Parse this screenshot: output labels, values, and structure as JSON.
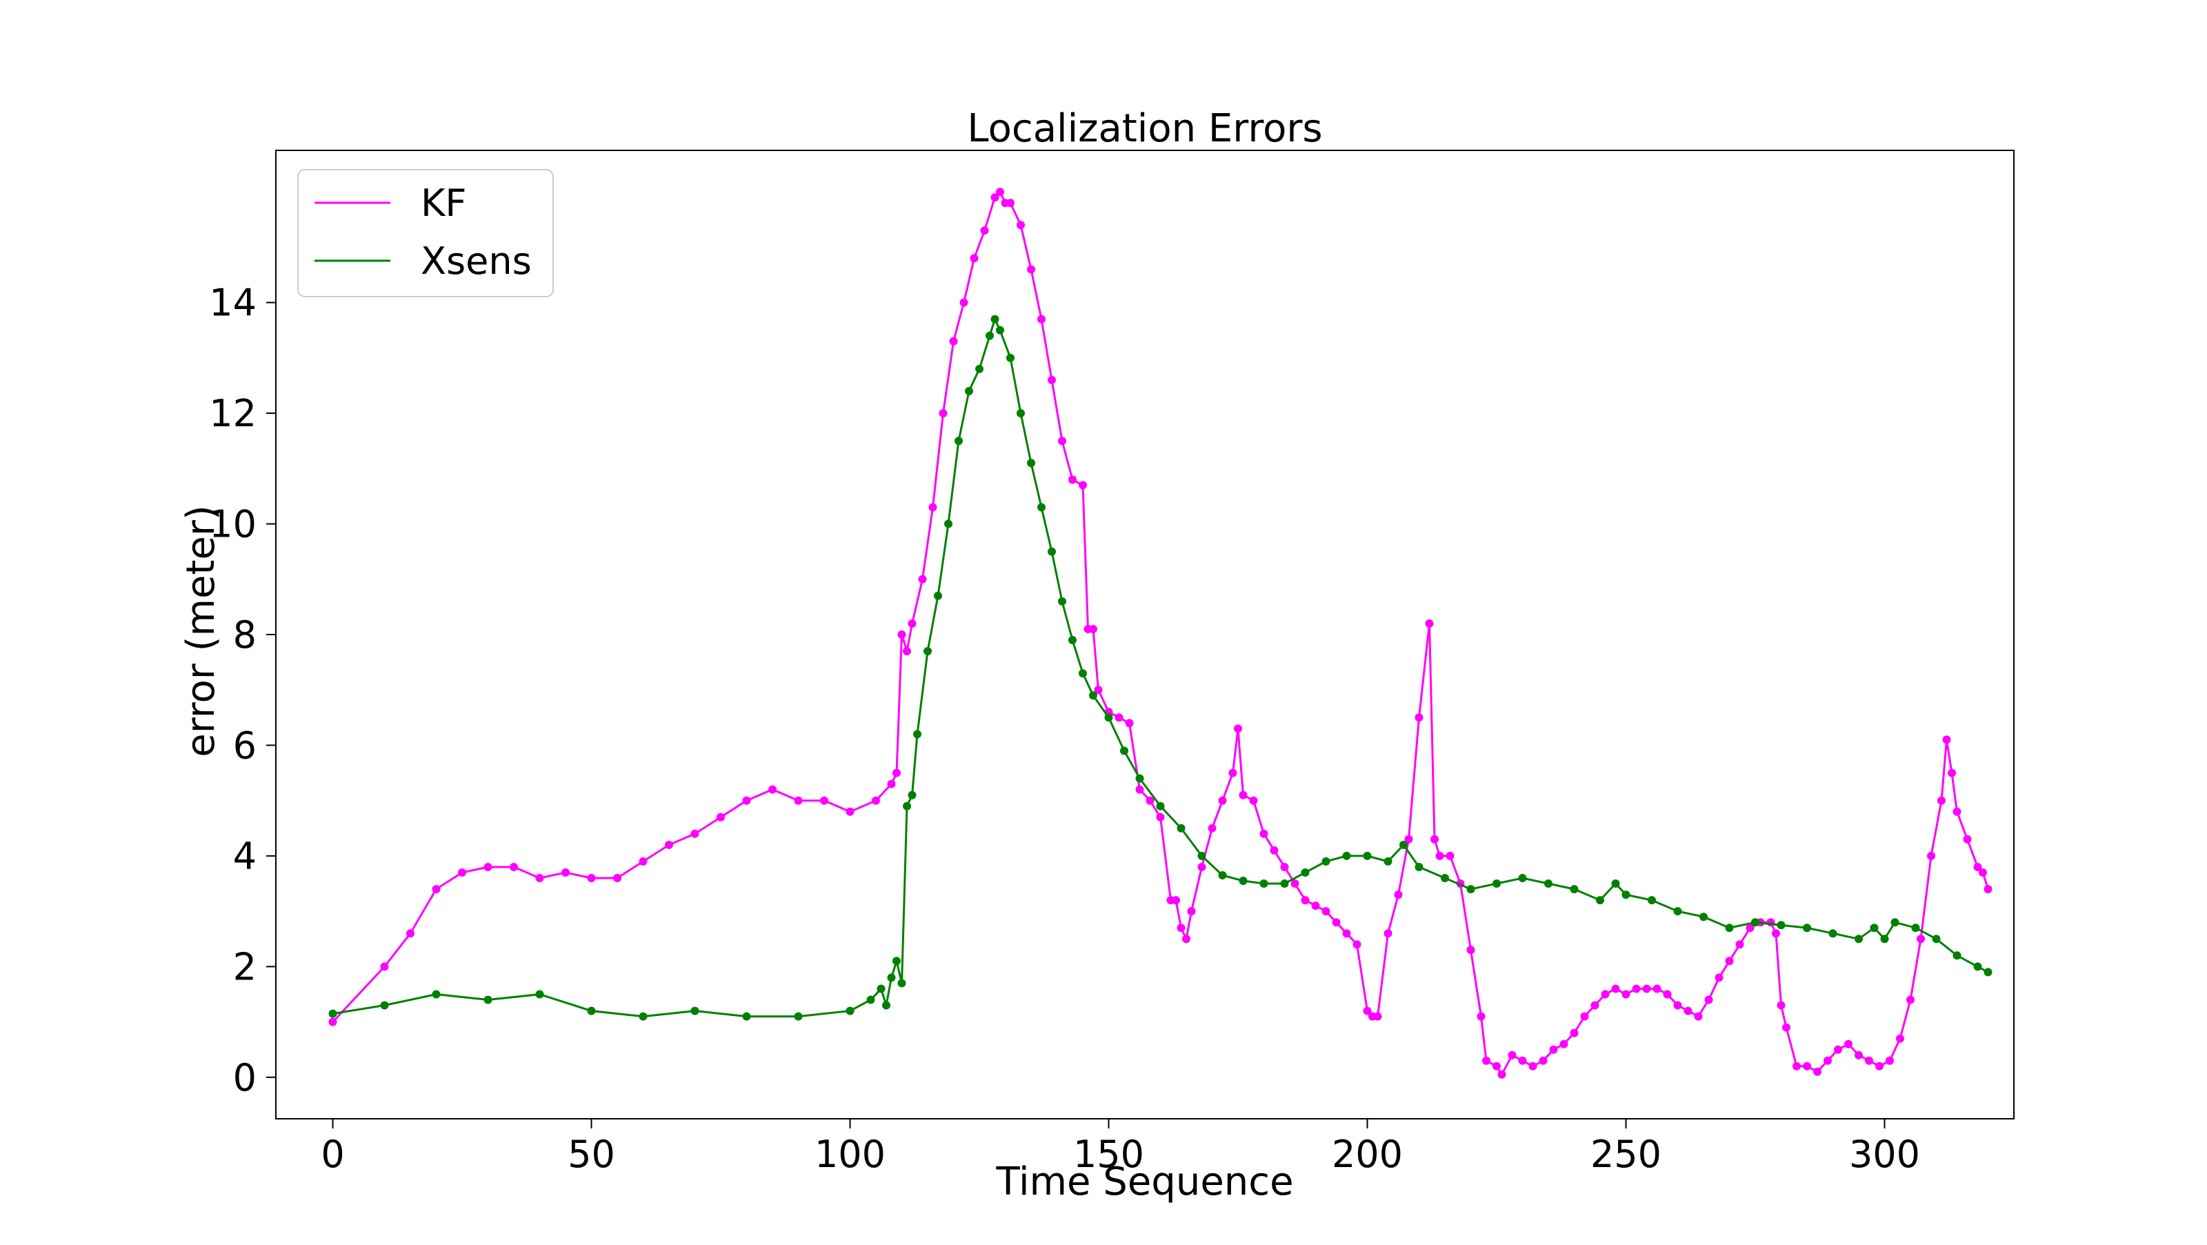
{
  "chart_data": {
    "type": "line",
    "title": "Localization Errors",
    "xlabel": "Time Sequence",
    "ylabel": "error (meter)",
    "xlim": [
      -11,
      325
    ],
    "ylim": [
      -0.75,
      16.75
    ],
    "xticks": [
      0,
      50,
      100,
      150,
      200,
      250,
      300
    ],
    "yticks": [
      0,
      2,
      4,
      6,
      8,
      10,
      12,
      14
    ],
    "grid": false,
    "legend": "top-left",
    "series": [
      {
        "name": "KF",
        "color": "#ff00ff",
        "marker": "circle",
        "points": [
          [
            0,
            1.0
          ],
          [
            10,
            2.0
          ],
          [
            15,
            2.6
          ],
          [
            20,
            3.4
          ],
          [
            25,
            3.7
          ],
          [
            30,
            3.8
          ],
          [
            35,
            3.8
          ],
          [
            40,
            3.6
          ],
          [
            45,
            3.7
          ],
          [
            50,
            3.6
          ],
          [
            55,
            3.6
          ],
          [
            60,
            3.9
          ],
          [
            65,
            4.2
          ],
          [
            70,
            4.4
          ],
          [
            75,
            4.7
          ],
          [
            80,
            5.0
          ],
          [
            85,
            5.2
          ],
          [
            90,
            5.0
          ],
          [
            95,
            5.0
          ],
          [
            100,
            4.8
          ],
          [
            105,
            5.0
          ],
          [
            108,
            5.3
          ],
          [
            109,
            5.5
          ],
          [
            110,
            8.0
          ],
          [
            111,
            7.7
          ],
          [
            112,
            8.2
          ],
          [
            114,
            9.0
          ],
          [
            116,
            10.3
          ],
          [
            118,
            12.0
          ],
          [
            120,
            13.3
          ],
          [
            122,
            14.0
          ],
          [
            124,
            14.8
          ],
          [
            126,
            15.3
          ],
          [
            128,
            15.9
          ],
          [
            129,
            16.0
          ],
          [
            130,
            15.8
          ],
          [
            131,
            15.8
          ],
          [
            133,
            15.4
          ],
          [
            135,
            14.6
          ],
          [
            137,
            13.7
          ],
          [
            139,
            12.6
          ],
          [
            141,
            11.5
          ],
          [
            143,
            10.8
          ],
          [
            145,
            10.7
          ],
          [
            146,
            8.1
          ],
          [
            147,
            8.1
          ],
          [
            148,
            7.0
          ],
          [
            150,
            6.6
          ],
          [
            152,
            6.5
          ],
          [
            154,
            6.4
          ],
          [
            156,
            5.2
          ],
          [
            158,
            5.0
          ],
          [
            160,
            4.7
          ],
          [
            162,
            3.2
          ],
          [
            163,
            3.2
          ],
          [
            164,
            2.7
          ],
          [
            165,
            2.5
          ],
          [
            166,
            3.0
          ],
          [
            168,
            3.8
          ],
          [
            170,
            4.5
          ],
          [
            172,
            5.0
          ],
          [
            174,
            5.5
          ],
          [
            175,
            6.3
          ],
          [
            176,
            5.1
          ],
          [
            178,
            5.0
          ],
          [
            180,
            4.4
          ],
          [
            182,
            4.1
          ],
          [
            184,
            3.8
          ],
          [
            186,
            3.5
          ],
          [
            188,
            3.2
          ],
          [
            190,
            3.1
          ],
          [
            192,
            3.0
          ],
          [
            194,
            2.8
          ],
          [
            196,
            2.6
          ],
          [
            198,
            2.4
          ],
          [
            200,
            1.2
          ],
          [
            201,
            1.1
          ],
          [
            202,
            1.1
          ],
          [
            204,
            2.6
          ],
          [
            206,
            3.3
          ],
          [
            208,
            4.3
          ],
          [
            210,
            6.5
          ],
          [
            212,
            8.2
          ],
          [
            213,
            4.3
          ],
          [
            214,
            4.0
          ],
          [
            216,
            4.0
          ],
          [
            218,
            3.5
          ],
          [
            220,
            2.3
          ],
          [
            222,
            1.1
          ],
          [
            223,
            0.3
          ],
          [
            225,
            0.2
          ],
          [
            226,
            0.05
          ],
          [
            228,
            0.4
          ],
          [
            230,
            0.3
          ],
          [
            232,
            0.2
          ],
          [
            234,
            0.3
          ],
          [
            236,
            0.5
          ],
          [
            238,
            0.6
          ],
          [
            240,
            0.8
          ],
          [
            242,
            1.1
          ],
          [
            244,
            1.3
          ],
          [
            246,
            1.5
          ],
          [
            248,
            1.6
          ],
          [
            250,
            1.5
          ],
          [
            252,
            1.6
          ],
          [
            254,
            1.6
          ],
          [
            256,
            1.6
          ],
          [
            258,
            1.5
          ],
          [
            260,
            1.3
          ],
          [
            262,
            1.2
          ],
          [
            264,
            1.1
          ],
          [
            266,
            1.4
          ],
          [
            268,
            1.8
          ],
          [
            270,
            2.1
          ],
          [
            272,
            2.4
          ],
          [
            274,
            2.7
          ],
          [
            276,
            2.8
          ],
          [
            278,
            2.8
          ],
          [
            279,
            2.6
          ],
          [
            280,
            1.3
          ],
          [
            281,
            0.9
          ],
          [
            283,
            0.2
          ],
          [
            285,
            0.2
          ],
          [
            287,
            0.1
          ],
          [
            289,
            0.3
          ],
          [
            291,
            0.5
          ],
          [
            293,
            0.6
          ],
          [
            295,
            0.4
          ],
          [
            297,
            0.3
          ],
          [
            299,
            0.2
          ],
          [
            301,
            0.3
          ],
          [
            303,
            0.7
          ],
          [
            305,
            1.4
          ],
          [
            307,
            2.5
          ],
          [
            309,
            4.0
          ],
          [
            311,
            5.0
          ],
          [
            312,
            6.1
          ],
          [
            313,
            5.5
          ],
          [
            314,
            4.8
          ],
          [
            316,
            4.3
          ],
          [
            318,
            3.8
          ],
          [
            319,
            3.7
          ],
          [
            320,
            3.4
          ]
        ]
      },
      {
        "name": "Xsens",
        "color": "#008000",
        "marker": "circle",
        "points": [
          [
            0,
            1.15
          ],
          [
            10,
            1.3
          ],
          [
            20,
            1.5
          ],
          [
            30,
            1.4
          ],
          [
            40,
            1.5
          ],
          [
            50,
            1.2
          ],
          [
            60,
            1.1
          ],
          [
            70,
            1.2
          ],
          [
            80,
            1.1
          ],
          [
            90,
            1.1
          ],
          [
            100,
            1.2
          ],
          [
            104,
            1.4
          ],
          [
            106,
            1.6
          ],
          [
            107,
            1.3
          ],
          [
            108,
            1.8
          ],
          [
            109,
            2.1
          ],
          [
            110,
            1.7
          ],
          [
            111,
            4.9
          ],
          [
            112,
            5.1
          ],
          [
            113,
            6.2
          ],
          [
            115,
            7.7
          ],
          [
            117,
            8.7
          ],
          [
            119,
            10.0
          ],
          [
            121,
            11.5
          ],
          [
            123,
            12.4
          ],
          [
            125,
            12.8
          ],
          [
            127,
            13.4
          ],
          [
            128,
            13.7
          ],
          [
            129,
            13.5
          ],
          [
            131,
            13.0
          ],
          [
            133,
            12.0
          ],
          [
            135,
            11.1
          ],
          [
            137,
            10.3
          ],
          [
            139,
            9.5
          ],
          [
            141,
            8.6
          ],
          [
            143,
            7.9
          ],
          [
            145,
            7.3
          ],
          [
            147,
            6.9
          ],
          [
            150,
            6.5
          ],
          [
            153,
            5.9
          ],
          [
            156,
            5.4
          ],
          [
            160,
            4.9
          ],
          [
            164,
            4.5
          ],
          [
            168,
            4.0
          ],
          [
            172,
            3.65
          ],
          [
            176,
            3.55
          ],
          [
            180,
            3.5
          ],
          [
            184,
            3.5
          ],
          [
            188,
            3.7
          ],
          [
            192,
            3.9
          ],
          [
            196,
            4.0
          ],
          [
            200,
            4.0
          ],
          [
            204,
            3.9
          ],
          [
            207,
            4.2
          ],
          [
            210,
            3.8
          ],
          [
            215,
            3.6
          ],
          [
            220,
            3.4
          ],
          [
            225,
            3.5
          ],
          [
            230,
            3.6
          ],
          [
            235,
            3.5
          ],
          [
            240,
            3.4
          ],
          [
            245,
            3.2
          ],
          [
            248,
            3.5
          ],
          [
            250,
            3.3
          ],
          [
            255,
            3.2
          ],
          [
            260,
            3.0
          ],
          [
            265,
            2.9
          ],
          [
            270,
            2.7
          ],
          [
            275,
            2.8
          ],
          [
            280,
            2.75
          ],
          [
            285,
            2.7
          ],
          [
            290,
            2.6
          ],
          [
            295,
            2.5
          ],
          [
            298,
            2.7
          ],
          [
            300,
            2.5
          ],
          [
            302,
            2.8
          ],
          [
            306,
            2.7
          ],
          [
            310,
            2.5
          ],
          [
            314,
            2.2
          ],
          [
            318,
            2.0
          ],
          [
            320,
            1.9
          ]
        ]
      }
    ]
  }
}
